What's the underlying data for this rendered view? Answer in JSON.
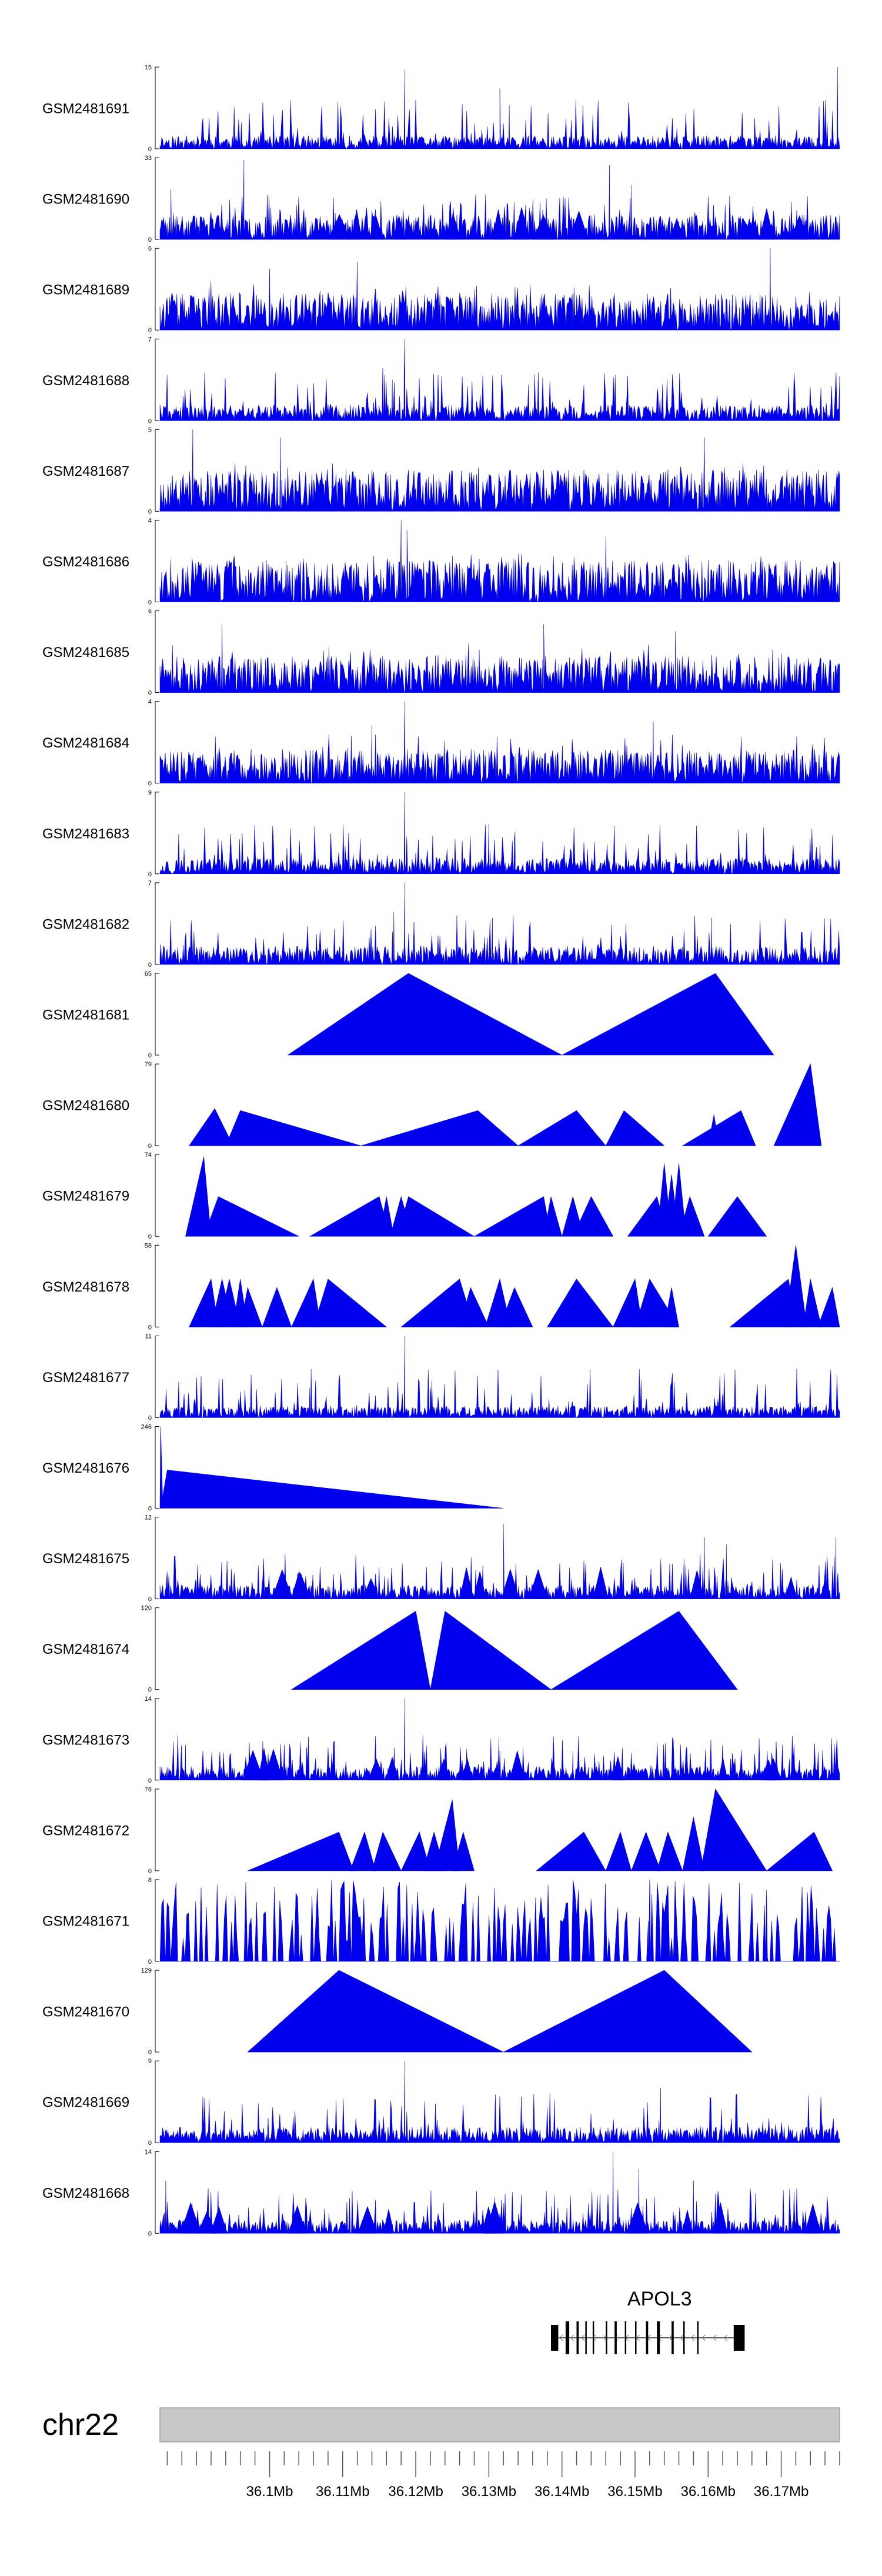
{
  "chart_data": {
    "type": "area",
    "title": "",
    "xlabel": "",
    "ylabel": "",
    "xlim_bp": [
      36085000,
      36178000
    ],
    "colors": {
      "signal": "#0000ee",
      "axis": "#000000",
      "ideogram": "#c8c8c8",
      "gene": "#000000"
    },
    "tracks": [
      {
        "name": "GSM2481691",
        "ymax": 15,
        "ymax_label": "15",
        "ymin_label": "0",
        "style": "dense",
        "seed": 11,
        "base": 0.1,
        "peaks": [
          [
            36118500,
            14.5
          ],
          [
            36131500,
            11
          ],
          [
            36132800,
            8
          ],
          [
            36177700,
            15
          ]
        ]
      },
      {
        "name": "GSM2481690",
        "ymax": 33,
        "ymax_label": "33",
        "ymin_label": "0",
        "style": "mixed",
        "seed": 23,
        "base": 0.25,
        "peaks": [
          [
            36086500,
            20
          ],
          [
            36096500,
            32
          ],
          [
            36146500,
            30
          ],
          [
            36149500,
            22
          ]
        ]
      },
      {
        "name": "GSM2481689",
        "ymax": 6,
        "ymax_label": "6",
        "ymin_label": "0",
        "style": "dense",
        "seed": 37,
        "base": 0.28,
        "peaks": [
          [
            36100000,
            4.5
          ],
          [
            36112000,
            5
          ],
          [
            36168500,
            6
          ]
        ]
      },
      {
        "name": "GSM2481688",
        "ymax": 7,
        "ymax_label": "7",
        "ymin_label": "0",
        "style": "dense",
        "seed": 41,
        "base": 0.12,
        "peaks": [
          [
            36115500,
            4.5
          ],
          [
            36116800,
            3.5
          ],
          [
            36118500,
            7
          ]
        ]
      },
      {
        "name": "GSM2481687",
        "ymax": 5,
        "ymax_label": "5",
        "ymin_label": "0",
        "style": "dense",
        "seed": 53,
        "base": 0.32,
        "peaks": [
          [
            36089500,
            5
          ],
          [
            36101500,
            4.5
          ],
          [
            36159500,
            4.5
          ]
        ]
      },
      {
        "name": "GSM2481686",
        "ymax": 4,
        "ymax_label": "4",
        "ymin_label": "0",
        "style": "dense",
        "seed": 67,
        "base": 0.32,
        "peaks": [
          [
            36118000,
            4
          ],
          [
            36118800,
            3.5
          ],
          [
            36146000,
            3.2
          ]
        ]
      },
      {
        "name": "GSM2481685",
        "ymax": 6,
        "ymax_label": "6",
        "ymin_label": "0",
        "style": "dense",
        "seed": 71,
        "base": 0.28,
        "peaks": [
          [
            36093500,
            5
          ],
          [
            36137500,
            5
          ],
          [
            36155500,
            4.5
          ]
        ]
      },
      {
        "name": "GSM2481684",
        "ymax": 4,
        "ymax_label": "4",
        "ymin_label": "0",
        "style": "dense",
        "seed": 83,
        "base": 0.26,
        "peaks": [
          [
            36118500,
            4
          ],
          [
            36114000,
            2.8
          ],
          [
            36152500,
            3
          ]
        ]
      },
      {
        "name": "GSM2481683",
        "ymax": 9,
        "ymax_label": "9",
        "ymin_label": "0",
        "style": "dense",
        "seed": 97,
        "base": 0.12,
        "peaks": [
          [
            36118500,
            9
          ],
          [
            36130000,
            5.5
          ],
          [
            36133500,
            4
          ]
        ]
      },
      {
        "name": "GSM2481682",
        "ymax": 7,
        "ymax_label": "7",
        "ymin_label": "0",
        "style": "dense",
        "seed": 101,
        "base": 0.14,
        "peaks": [
          [
            36118500,
            7
          ],
          [
            36117000,
            4.5
          ],
          [
            36130500,
            4
          ],
          [
            36160500,
            4
          ]
        ]
      },
      {
        "name": "GSM2481681",
        "ymax": 65,
        "ymax_label": "65",
        "ymin_label": "0",
        "style": "triangles",
        "triangles": [
          [
            36102500,
            36119000,
            36140000,
            65
          ],
          [
            36140000,
            36161000,
            36169000,
            65
          ]
        ]
      },
      {
        "name": "GSM2481680",
        "ymax": 79,
        "ymax_label": "79",
        "ymin_label": "0",
        "style": "triangles",
        "triangles": [
          [
            36089000,
            36092500,
            36095000,
            36
          ],
          [
            36094000,
            36096000,
            36112500,
            34
          ],
          [
            36112500,
            36128500,
            36134000,
            34
          ],
          [
            36134000,
            36142000,
            36146000,
            34
          ],
          [
            36146000,
            36148500,
            36154000,
            34
          ],
          [
            36156500,
            36164500,
            36166500,
            34
          ],
          [
            36160000,
            36160800,
            36161500,
            30
          ],
          [
            36169000,
            36174000,
            36175500,
            79
          ]
        ]
      },
      {
        "name": "GSM2481679",
        "ymax": 74,
        "ymax_label": "74",
        "ymin_label": "0",
        "style": "triangles",
        "triangles": [
          [
            36088500,
            36091000,
            36092000,
            72
          ],
          [
            36091000,
            36093000,
            36104000,
            36
          ],
          [
            36105500,
            36115000,
            36116500,
            36
          ],
          [
            36115000,
            36116000,
            36117000,
            36
          ],
          [
            36116500,
            36118000,
            36119500,
            36
          ],
          [
            36117500,
            36119000,
            36128000,
            36
          ],
          [
            36128000,
            36137500,
            36138500,
            36
          ],
          [
            36137500,
            36138500,
            36140000,
            36
          ],
          [
            36140000,
            36141500,
            36143000,
            36
          ],
          [
            36141500,
            36144000,
            36147000,
            36
          ],
          [
            36149000,
            36153000,
            36154500,
            36
          ],
          [
            36153000,
            36154000,
            36155000,
            66
          ],
          [
            36154000,
            36155000,
            36156000,
            56
          ],
          [
            36155000,
            36156000,
            36157000,
            66
          ],
          [
            36156000,
            36157500,
            36159500,
            36
          ],
          [
            36160000,
            36164000,
            36168000,
            36
          ]
        ]
      },
      {
        "name": "GSM2481678",
        "ymax": 58,
        "ymax_label": "58",
        "ymin_label": "0",
        "style": "triangles",
        "triangles": [
          [
            36089000,
            36092000,
            36093000,
            34
          ],
          [
            36092000,
            36093500,
            36095000,
            34
          ],
          [
            36093000,
            36094500,
            36096000,
            34
          ],
          [
            36095000,
            36096000,
            36097000,
            34
          ],
          [
            36096000,
            36097000,
            36099000,
            28
          ],
          [
            36099000,
            36101000,
            36103000,
            28
          ],
          [
            36103000,
            36106000,
            36107000,
            34
          ],
          [
            36106000,
            36108000,
            36116000,
            34
          ],
          [
            36118000,
            36126000,
            36128000,
            34
          ],
          [
            36126000,
            36127500,
            36130000,
            28
          ],
          [
            36129500,
            36131500,
            36133000,
            34
          ],
          [
            36131500,
            36133500,
            36136000,
            28
          ],
          [
            36138000,
            36142000,
            36147000,
            34
          ],
          [
            36147000,
            36150000,
            36151000,
            34
          ],
          [
            36150000,
            36152000,
            36156000,
            34
          ],
          [
            36154000,
            36155000,
            36156000,
            28
          ],
          [
            36163000,
            36171000,
            36172000,
            34
          ],
          [
            36170500,
            36172000,
            36173500,
            58
          ],
          [
            36173000,
            36174000,
            36175500,
            34
          ],
          [
            36175000,
            36177000,
            36178000,
            28
          ]
        ]
      },
      {
        "name": "GSM2481677",
        "ymax": 11,
        "ymax_label": "11",
        "ymin_label": "0",
        "style": "dense",
        "seed": 131,
        "base": 0.09,
        "peaks": [
          [
            36118500,
            11
          ],
          [
            36105500,
            4
          ],
          [
            36122000,
            4
          ]
        ]
      },
      {
        "name": "GSM2481676",
        "ymax": 246,
        "ymax_label": "246",
        "ymin_label": "0",
        "style": "triangles",
        "triangles": [
          [
            36085000,
            36085100,
            36085400,
            246
          ],
          [
            36085100,
            36086000,
            36132000,
            115
          ]
        ]
      },
      {
        "name": "GSM2481675",
        "ymax": 12,
        "ymax_label": "12",
        "ymin_label": "0",
        "style": "mixed",
        "seed": 151,
        "base": 0.14,
        "peaks": [
          [
            36132000,
            11
          ],
          [
            36159500,
            9
          ],
          [
            36162500,
            8
          ],
          [
            36177500,
            9
          ]
        ]
      },
      {
        "name": "GSM2481674",
        "ymax": 120,
        "ymax_label": "120",
        "ymin_label": "0",
        "style": "triangles",
        "triangles": [
          [
            36103000,
            36120000,
            36122000,
            115
          ],
          [
            36122000,
            36124000,
            36138500,
            115
          ],
          [
            36138500,
            36156000,
            36164000,
            115
          ]
        ]
      },
      {
        "name": "GSM2481673",
        "ymax": 14,
        "ymax_label": "14",
        "ymin_label": "0",
        "style": "mixed",
        "seed": 173,
        "base": 0.14,
        "peaks": [
          [
            36118500,
            14
          ],
          [
            36088500,
            6
          ],
          [
            36131500,
            5
          ],
          [
            36141500,
            5
          ]
        ]
      },
      {
        "name": "GSM2481672",
        "ymax": 76,
        "ymax_label": "76",
        "ymin_label": "0",
        "style": "triangles",
        "triangles": [
          [
            36097000,
            36109500,
            36111500,
            36
          ],
          [
            36111000,
            36113000,
            36114500,
            36
          ],
          [
            36114000,
            36115500,
            36118000,
            36
          ],
          [
            36118000,
            36120500,
            36122000,
            36
          ],
          [
            36121000,
            36122500,
            36124000,
            36
          ],
          [
            36122500,
            36125000,
            36126000,
            66
          ],
          [
            36125000,
            36126500,
            36128000,
            36
          ],
          [
            36136500,
            36143000,
            36146000,
            36
          ],
          [
            36146000,
            36148000,
            36149500,
            36
          ],
          [
            36149500,
            36151500,
            36153500,
            36
          ],
          [
            36153000,
            36154500,
            36156500,
            36
          ],
          [
            36156500,
            36158000,
            36159500,
            50
          ],
          [
            36159000,
            36161000,
            36168000,
            76
          ],
          [
            36168000,
            36174500,
            36177000,
            36
          ]
        ]
      },
      {
        "name": "GSM2481671",
        "ymax": 8,
        "ymax_label": "8",
        "ymin_label": "0",
        "style": "comb",
        "seed": 191,
        "base": 0.6,
        "peaks": [
          [
            36152000,
            8
          ],
          [
            36168000,
            7
          ]
        ]
      },
      {
        "name": "GSM2481670",
        "ymax": 129,
        "ymax_label": "129",
        "ymin_label": "0",
        "style": "triangles",
        "triangles": [
          [
            36097000,
            36109500,
            36132000,
            129
          ],
          [
            36132000,
            36154000,
            36166000,
            129
          ]
        ]
      },
      {
        "name": "GSM2481669",
        "ymax": 9,
        "ymax_label": "9",
        "ymin_label": "0",
        "style": "dense",
        "seed": 211,
        "base": 0.12,
        "peaks": [
          [
            36118500,
            9
          ],
          [
            36153500,
            6
          ]
        ]
      },
      {
        "name": "GSM2481668",
        "ymax": 14,
        "ymax_label": "14",
        "ymin_label": "0",
        "style": "mixed",
        "seed": 223,
        "base": 0.14,
        "peaks": [
          [
            36085800,
            9
          ],
          [
            36147000,
            14
          ],
          [
            36150500,
            11
          ],
          [
            36158000,
            9
          ]
        ]
      }
    ],
    "gene": {
      "name": "APOL3",
      "start": 36138500,
      "end": 36165000,
      "strand": "-",
      "exons": [
        [
          36138500,
          36139500
        ],
        [
          36140500,
          36141000
        ],
        [
          36142000,
          36142300
        ],
        [
          36143200,
          36143400
        ],
        [
          36144200,
          36144400
        ],
        [
          36146000,
          36146200
        ],
        [
          36147200,
          36147500
        ],
        [
          36148600,
          36148800
        ],
        [
          36150000,
          36150200
        ],
        [
          36151500,
          36151800
        ],
        [
          36153000,
          36153400
        ],
        [
          36155000,
          36155300
        ],
        [
          36156600,
          36156800
        ],
        [
          36158500,
          36158700
        ],
        [
          36163500,
          36165000
        ]
      ]
    },
    "chromosome": "chr22",
    "x_ticks": [
      {
        "pos": 36100000,
        "label": "36.1Mb"
      },
      {
        "pos": 36110000,
        "label": "36.11Mb"
      },
      {
        "pos": 36120000,
        "label": "36.12Mb"
      },
      {
        "pos": 36130000,
        "label": "36.13Mb"
      },
      {
        "pos": 36140000,
        "label": "36.14Mb"
      },
      {
        "pos": 36150000,
        "label": "36.15Mb"
      },
      {
        "pos": 36160000,
        "label": "36.16Mb"
      },
      {
        "pos": 36170000,
        "label": "36.17Mb"
      }
    ],
    "minor_tick_step": 2000
  }
}
